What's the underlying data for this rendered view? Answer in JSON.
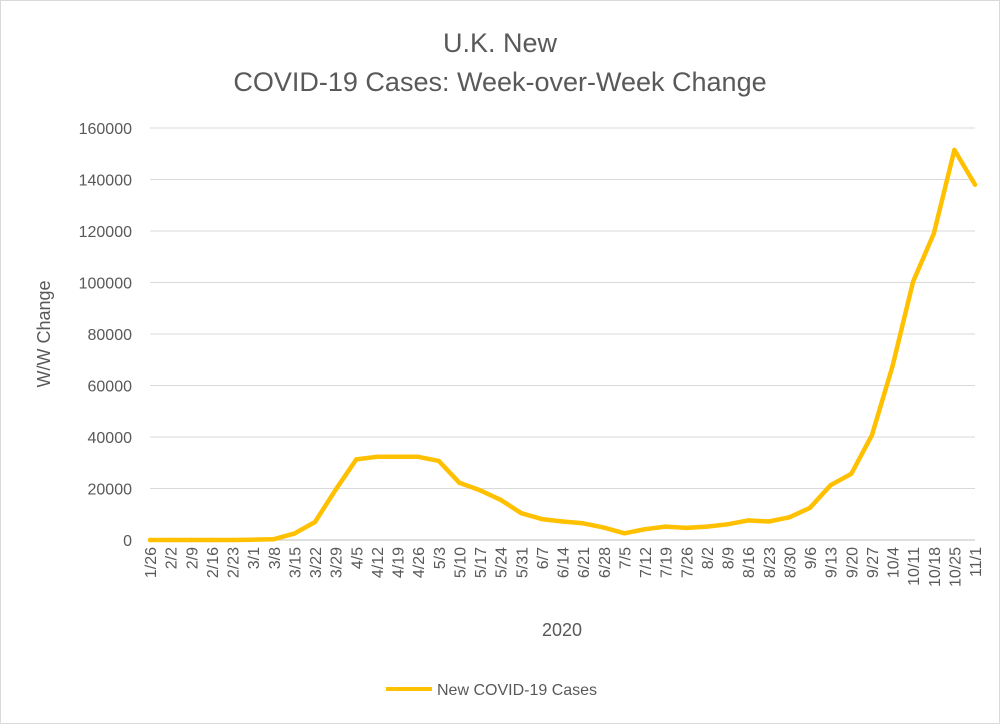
{
  "chart_data": {
    "type": "line",
    "title_lines": [
      "U.K. New",
      "COVID-19 Cases: Week-over-Week Change"
    ],
    "xlabel": "2020",
    "ylabel": "W/W Change",
    "ylim": [
      0,
      160000
    ],
    "yticks": [
      0,
      20000,
      40000,
      60000,
      80000,
      100000,
      120000,
      140000,
      160000
    ],
    "ytick_labels": [
      "0",
      "20000",
      "40000",
      "60000",
      "80000",
      "100000",
      "120000",
      "140000",
      "160000"
    ],
    "grid": true,
    "legend": "bottom",
    "categories": [
      "1/26",
      "2/2",
      "2/9",
      "2/16",
      "2/23",
      "3/1",
      "3/8",
      "3/15",
      "3/22",
      "3/29",
      "4/5",
      "4/12",
      "4/19",
      "4/26",
      "5/3",
      "5/10",
      "5/17",
      "5/24",
      "5/31",
      "6/7",
      "6/14",
      "6/21",
      "6/28",
      "7/5",
      "7/12",
      "7/19",
      "7/26",
      "8/2",
      "8/9",
      "8/16",
      "8/23",
      "8/30",
      "9/6",
      "9/13",
      "9/20",
      "9/27",
      "10/4",
      "10/11",
      "10/18",
      "10/25",
      "11/1"
    ],
    "series": [
      {
        "name": "New COVID-19 Cases",
        "color": "#FFC000",
        "values": [
          0,
          0,
          0,
          0,
          0,
          100,
          300,
          2500,
          7000,
          19500,
          31300,
          32300,
          32300,
          32300,
          30700,
          22200,
          19300,
          15600,
          10400,
          8100,
          7200,
          6500,
          4800,
          2600,
          4200,
          5200,
          4700,
          5200,
          6100,
          7600,
          7200,
          8800,
          12500,
          21300,
          25700,
          40700,
          67500,
          100300,
          119000,
          151500,
          138000
        ]
      }
    ]
  }
}
